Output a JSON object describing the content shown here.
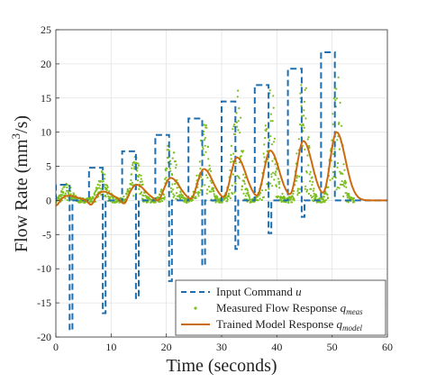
{
  "chart_data": {
    "type": "line",
    "xlabel": "Time (seconds)",
    "ylabel_main": "Flow Rate (mm",
    "ylabel_sup": "3",
    "ylabel_tail": "/s)",
    "xlim": [
      0,
      60
    ],
    "ylim": [
      -20,
      25
    ],
    "xticks": [
      "0",
      "10",
      "20",
      "30",
      "40",
      "50",
      "60"
    ],
    "yticks": [
      "-20",
      "-15",
      "-10",
      "-5",
      "0",
      "5",
      "10",
      "15",
      "20",
      "25"
    ],
    "grid": true,
    "legend_position": "bottom-right",
    "legend": [
      {
        "prefix": "Input Command ",
        "var": "u",
        "sub": ""
      },
      {
        "prefix": "Measured Flow Response ",
        "var": "q",
        "sub": "meas"
      },
      {
        "prefix": "Trained Model Response ",
        "var": "q",
        "sub": "model"
      }
    ],
    "colors": {
      "input": "#1f6fb0",
      "measured": "#7cbf1e",
      "model": "#cc6a10"
    },
    "series": [
      {
        "key": "input",
        "style": "dashed",
        "cycles": [
          {
            "start": 0.0,
            "high": 2.3,
            "low": -19.0
          },
          {
            "start": 6.0,
            "high": 4.8,
            "low": -16.5
          },
          {
            "start": 12.0,
            "high": 7.2,
            "low": -14.3
          },
          {
            "start": 18.0,
            "high": 9.6,
            "low": -11.8
          },
          {
            "start": 24.0,
            "high": 12.0,
            "low": -9.5
          },
          {
            "start": 30.0,
            "high": 14.5,
            "low": -7.1
          },
          {
            "start": 36.0,
            "high": 16.9,
            "low": -4.8
          },
          {
            "start": 42.0,
            "high": 19.3,
            "low": -2.4
          },
          {
            "start": 48.0,
            "high": 21.7,
            "low": 0.0
          }
        ],
        "cycle_period": 6.0,
        "high_duration": 2.5,
        "low_duration": 0.5,
        "end_time": 60.0
      },
      {
        "key": "measured",
        "style": "points",
        "peaks": [
          {
            "t": 2.0,
            "env": 2.3
          },
          {
            "t": 8.5,
            "env": 4.0
          },
          {
            "t": 14.5,
            "env": 6.5
          },
          {
            "t": 20.8,
            "env": 9.8
          },
          {
            "t": 26.8,
            "env": 12.3
          },
          {
            "t": 32.8,
            "env": 16.0
          },
          {
            "t": 38.8,
            "env": 19.0
          },
          {
            "t": 44.8,
            "env": 19.5
          },
          {
            "t": 50.8,
            "env": 19.5
          }
        ],
        "mean_fraction": 0.55,
        "t_start": 0.0,
        "t_end": 54.0
      },
      {
        "key": "model",
        "style": "solid",
        "peaks": [
          {
            "t": 2.3,
            "v": 0.7
          },
          {
            "t": 8.6,
            "v": 1.3
          },
          {
            "t": 14.6,
            "v": 2.3
          },
          {
            "t": 20.8,
            "v": 3.3
          },
          {
            "t": 26.8,
            "v": 4.6
          },
          {
            "t": 32.8,
            "v": 6.3
          },
          {
            "t": 38.8,
            "v": 7.3
          },
          {
            "t": 44.8,
            "v": 8.7
          },
          {
            "t": 50.8,
            "v": 10.0
          }
        ],
        "t_start": 0.0,
        "t_end": 60.0
      }
    ]
  }
}
